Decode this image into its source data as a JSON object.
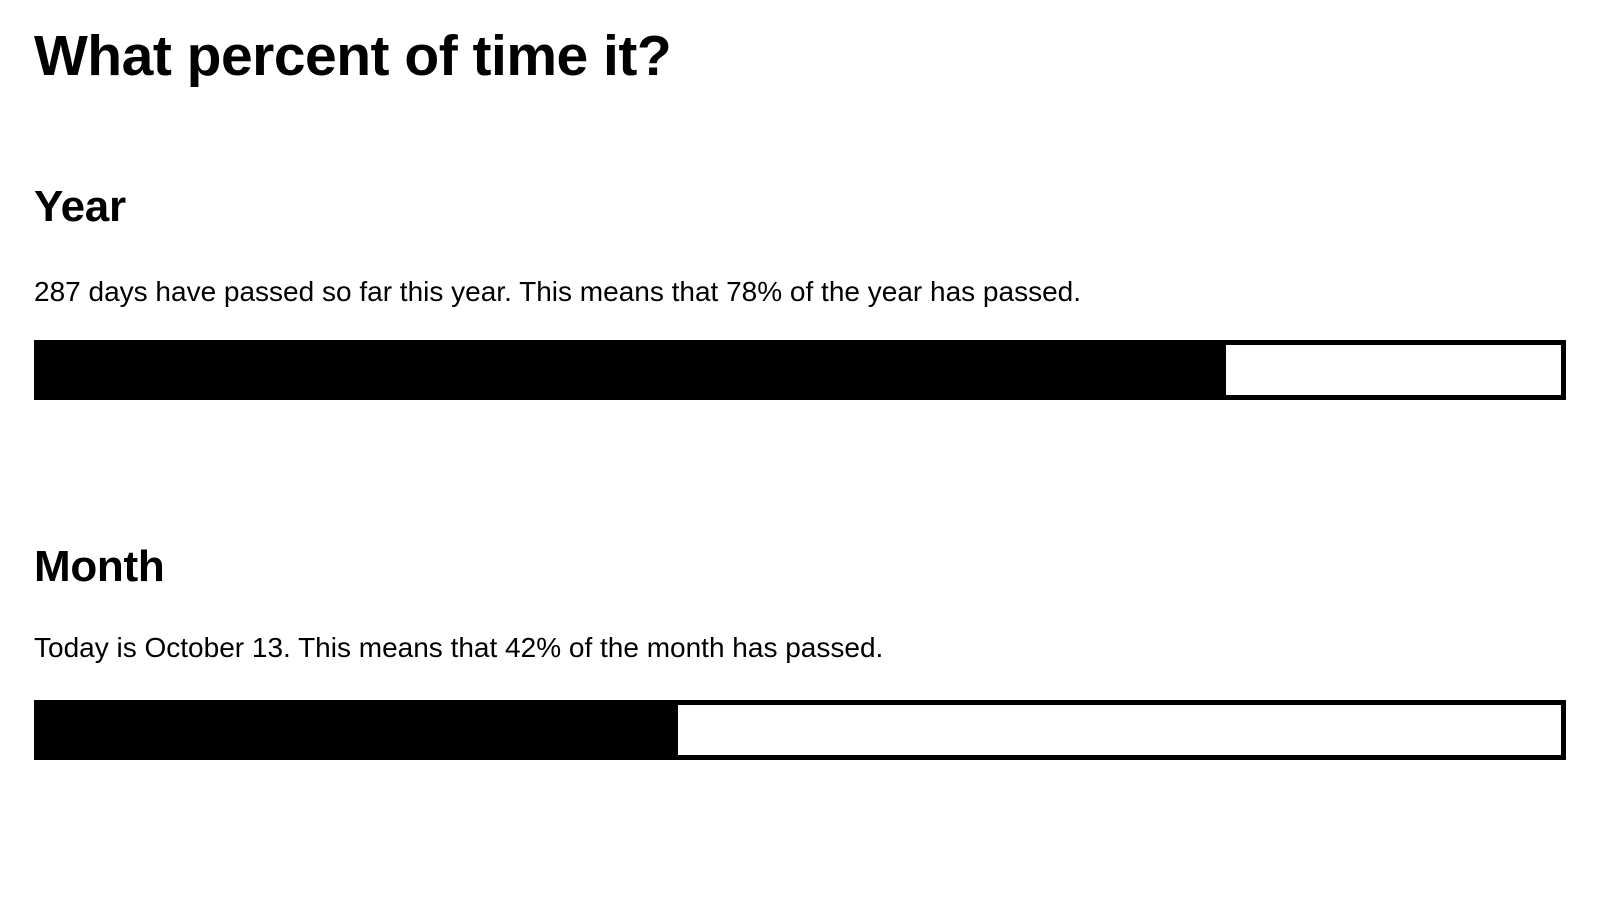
{
  "page": {
    "title": "What percent of time it?",
    "colors": {
      "background": "#ffffff",
      "text": "#000000",
      "bar_border": "#000000",
      "bar_track": "#ffffff",
      "bar_fill": "#000000"
    }
  },
  "sections": [
    {
      "id": "year",
      "heading": "Year",
      "description": "287 days have passed so far this year. This means that 78% of the year has passed.",
      "percent": 78,
      "fill_style": "width:78%"
    },
    {
      "id": "month",
      "heading": "Month",
      "description": "Today is October 13. This means that 42% of the month has passed.",
      "percent": 42,
      "fill_style": "width:42%"
    }
  ]
}
